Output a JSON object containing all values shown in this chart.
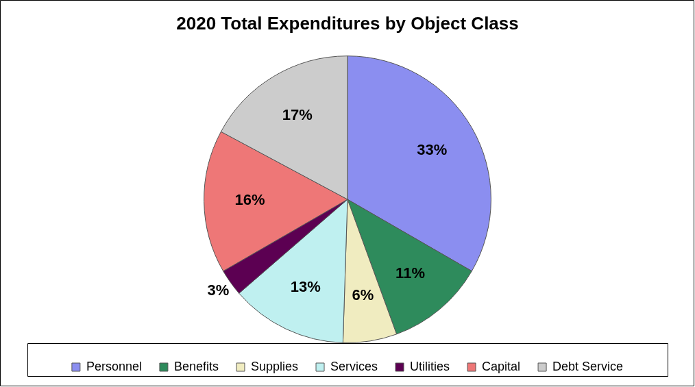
{
  "chart_data": {
    "type": "pie",
    "title": "2020 Total Expenditures by Object Class",
    "categories": [
      "Personnel",
      "Benefits",
      "Supplies",
      "Services",
      "Utilities",
      "Capital",
      "Debt Service"
    ],
    "values": [
      33,
      11,
      6,
      13,
      3,
      16,
      17
    ],
    "value_labels": [
      "33%",
      "11%",
      "6%",
      "13%",
      "3%",
      "16%",
      "17%"
    ],
    "colors": [
      "#8b8ef0",
      "#2e8b5c",
      "#f0ecc0",
      "#bff0f0",
      "#5c0052",
      "#ee7777",
      "#cccccc"
    ],
    "legend": "bottom"
  }
}
